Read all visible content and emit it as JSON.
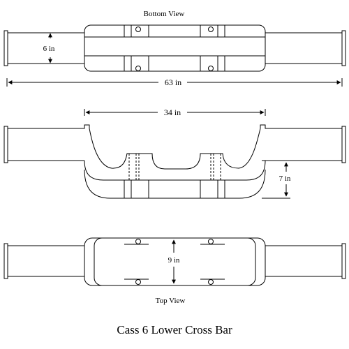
{
  "views": {
    "bottom": "Bottom View",
    "top": "Top View"
  },
  "dimensions": {
    "tube_diameter": "6 in",
    "overall_length": "63 in",
    "center_span": "34 in",
    "drop_height": "7 in",
    "body_width": "9 in"
  },
  "title": "Cass 6 Lower Cross Bar"
}
